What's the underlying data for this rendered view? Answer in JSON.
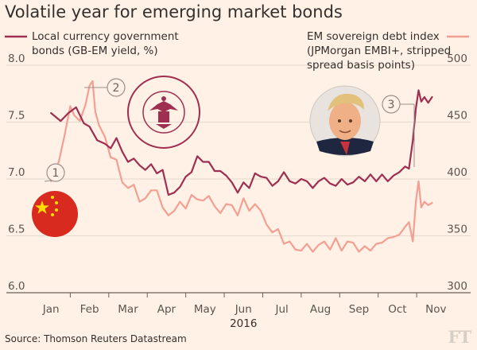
{
  "title": "Volatile year for emerging market bonds",
  "source": "Source: Thomson Reuters Datastream",
  "logo": "FT",
  "chart_data": {
    "type": "line",
    "year_label": "2016",
    "x_ticks": [
      "Jan",
      "Feb",
      "Mar",
      "Apr",
      "May",
      "Jun",
      "Jul",
      "Aug",
      "Sep",
      "Oct",
      "Nov"
    ],
    "left_axis": {
      "ylim": [
        6.0,
        8.0
      ],
      "ticks": [
        "6.0",
        "6.5",
        "7.0",
        "7.5",
        "8.0"
      ]
    },
    "right_axis": {
      "ylim": [
        300,
        500
      ],
      "ticks": [
        "300",
        "350",
        "400",
        "450",
        "500"
      ]
    },
    "grid": true,
    "series": [
      {
        "name": "Local currency government bonds (GB-EM yield, %)",
        "axis": "left",
        "color": "#9e2f50",
        "x": [
          1.0,
          1.25,
          1.45,
          1.65,
          1.85,
          2.0,
          2.2,
          2.4,
          2.55,
          2.7,
          2.85,
          3.0,
          3.15,
          3.3,
          3.45,
          3.6,
          3.75,
          3.9,
          4.05,
          4.2,
          4.35,
          4.5,
          4.65,
          4.8,
          4.95,
          5.1,
          5.25,
          5.4,
          5.55,
          5.7,
          5.85,
          6.0,
          6.15,
          6.3,
          6.45,
          6.6,
          6.75,
          6.9,
          7.05,
          7.2,
          7.35,
          7.5,
          7.65,
          7.8,
          7.95,
          8.1,
          8.25,
          8.4,
          8.55,
          8.7,
          8.85,
          9.0,
          9.15,
          9.3,
          9.45,
          9.6,
          9.75,
          9.9,
          10.05,
          10.2,
          10.3,
          10.4,
          10.48,
          10.55,
          10.62,
          10.7,
          10.8,
          10.9
        ],
        "values": [
          7.58,
          7.51,
          7.58,
          7.63,
          7.49,
          7.46,
          7.34,
          7.31,
          7.27,
          7.36,
          7.24,
          7.15,
          7.18,
          7.12,
          7.08,
          7.13,
          7.05,
          7.08,
          6.86,
          6.88,
          6.93,
          7.02,
          7.06,
          7.2,
          7.15,
          7.15,
          7.07,
          7.07,
          7.03,
          6.97,
          6.88,
          6.97,
          6.92,
          7.05,
          7.02,
          7.01,
          6.94,
          6.98,
          7.06,
          6.98,
          6.96,
          7.0,
          6.98,
          6.92,
          6.98,
          7.01,
          6.96,
          6.94,
          7.0,
          6.95,
          6.97,
          7.02,
          6.98,
          7.04,
          6.98,
          7.04,
          6.98,
          7.03,
          7.06,
          7.11,
          7.09,
          7.34,
          7.62,
          7.78,
          7.68,
          7.72,
          7.67,
          7.72
        ]
      },
      {
        "name": "EM sovereign debt index (JPMorgan EMBI+, stripped spread basis points)",
        "axis": "right",
        "color": "#f39f92",
        "x": [
          1.0,
          1.1,
          1.2,
          1.35,
          1.5,
          1.6,
          1.75,
          1.9,
          2.0,
          2.08,
          2.15,
          2.25,
          2.4,
          2.55,
          2.7,
          2.85,
          3.0,
          3.15,
          3.3,
          3.45,
          3.6,
          3.75,
          3.9,
          4.05,
          4.2,
          4.35,
          4.5,
          4.65,
          4.8,
          4.95,
          5.1,
          5.25,
          5.4,
          5.55,
          5.7,
          5.85,
          6.0,
          6.15,
          6.3,
          6.45,
          6.6,
          6.75,
          6.9,
          7.05,
          7.2,
          7.35,
          7.5,
          7.65,
          7.8,
          7.95,
          8.1,
          8.25,
          8.4,
          8.55,
          8.7,
          8.85,
          9.0,
          9.15,
          9.3,
          9.45,
          9.6,
          9.75,
          9.9,
          10.05,
          10.2,
          10.3,
          10.4,
          10.48,
          10.55,
          10.62,
          10.7,
          10.8,
          10.9
        ],
        "values": [
          398,
          408,
          415,
          438,
          464,
          456,
          451,
          466,
          482,
          486,
          459,
          447,
          437,
          419,
          417,
          397,
          392,
          395,
          380,
          383,
          390,
          390,
          375,
          368,
          372,
          380,
          374,
          386,
          382,
          381,
          385,
          376,
          370,
          378,
          377,
          368,
          383,
          372,
          378,
          372,
          360,
          353,
          356,
          343,
          345,
          338,
          337,
          343,
          336,
          342,
          345,
          338,
          348,
          337,
          345,
          344,
          336,
          341,
          337,
          343,
          344,
          348,
          349,
          351,
          358,
          362,
          345,
          380,
          398,
          375,
          380,
          377,
          379
        ]
      }
    ],
    "annotations": [
      "1",
      "2",
      "3"
    ]
  }
}
